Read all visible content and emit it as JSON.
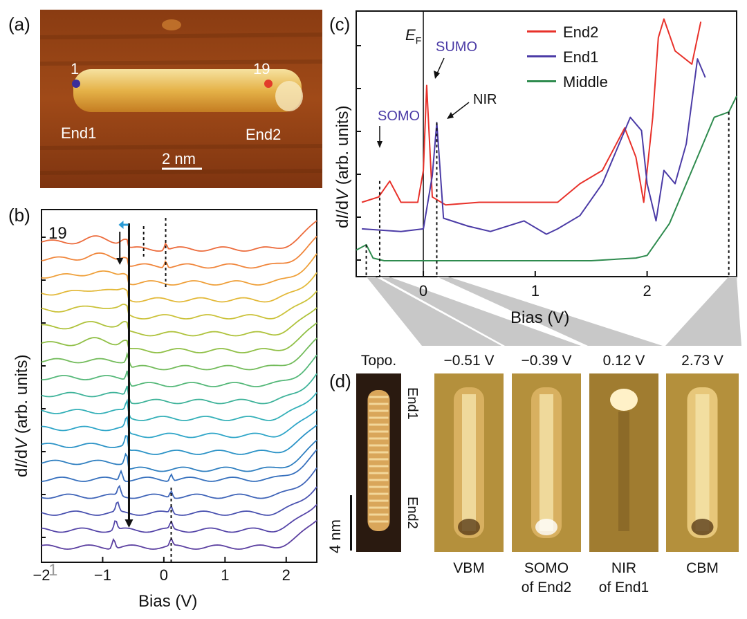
{
  "panels": {
    "a": {
      "label": "(a)",
      "point_start": "1",
      "point_end": "19",
      "end_left": "End1",
      "end_right": "End2",
      "scale_bar": "2 nm"
    },
    "b": {
      "label": "(b)",
      "xlabel": "Bias (V)",
      "ylabel_pre": "d",
      "ylabel_i": "I",
      "ylabel_mid": "/d",
      "ylabel_v": "V",
      "ylabel_post": " (arb. units)",
      "trace_top_label": "19",
      "trace_bottom_label": "1",
      "xticks": [
        "−2",
        "−1",
        "0",
        "1",
        "2"
      ]
    },
    "c": {
      "label": "(c)",
      "xlabel": "Bias (V)",
      "ylabel_pre": "d",
      "ylabel_i": "I",
      "ylabel_mid": "/d",
      "ylabel_v": "V",
      "ylabel_post": " (arb. units)",
      "ef_main": "E",
      "ef_sub": "F",
      "annot_somo": "SOMO",
      "annot_sumo": "SUMO",
      "annot_nir": "NIR",
      "xticks": [
        "0",
        "1",
        "2"
      ],
      "legend": [
        {
          "name": "End2",
          "color": "#e8312a"
        },
        {
          "name": "End1",
          "color": "#4b3ba6"
        },
        {
          "name": "Middle",
          "color": "#2e8b4e"
        }
      ]
    },
    "d": {
      "label": "(d)",
      "images": [
        {
          "top": "Topo.",
          "bottom1": "",
          "bottom2": ""
        },
        {
          "top": "−0.51 V",
          "bottom1": "VBM",
          "bottom2": ""
        },
        {
          "top": "−0.39 V",
          "bottom1": "SOMO",
          "bottom2": "of End2"
        },
        {
          "top": "0.12 V",
          "bottom1": "NIR",
          "bottom2": "of End1"
        },
        {
          "top": "2.73 V",
          "bottom1": "CBM",
          "bottom2": ""
        }
      ],
      "end1": "End1",
      "end2": "End2",
      "scale_bar": "4 nm"
    }
  },
  "chart_data": [
    {
      "type": "line",
      "title": "(c)",
      "xlabel": "Bias (V)",
      "ylabel": "dI/dV (arb. units)",
      "xlim": [
        -0.6,
        2.8
      ],
      "series": [
        {
          "name": "End2",
          "x": [
            -0.55,
            -0.4,
            -0.3,
            -0.2,
            -0.05,
            0.0,
            0.03,
            0.08,
            0.2,
            0.5,
            0.9,
            1.2,
            1.4,
            1.6,
            1.8,
            1.9,
            1.97,
            2.05,
            2.1,
            2.15,
            2.25,
            2.4,
            2.48
          ],
          "y": [
            0.28,
            0.3,
            0.36,
            0.28,
            0.28,
            0.4,
            0.72,
            0.3,
            0.27,
            0.28,
            0.28,
            0.28,
            0.35,
            0.4,
            0.56,
            0.45,
            0.28,
            0.6,
            0.9,
            0.97,
            0.85,
            0.8,
            0.96
          ]
        },
        {
          "name": "End1",
          "x": [
            -0.55,
            -0.2,
            0.0,
            0.08,
            0.12,
            0.18,
            0.4,
            0.6,
            0.9,
            1.1,
            1.2,
            1.4,
            1.6,
            1.7,
            1.85,
            1.95,
            2.0,
            2.08,
            2.15,
            2.25,
            2.35,
            2.45,
            2.52
          ],
          "y": [
            0.18,
            0.17,
            0.18,
            0.38,
            0.58,
            0.22,
            0.19,
            0.17,
            0.21,
            0.16,
            0.18,
            0.23,
            0.35,
            0.45,
            0.6,
            0.55,
            0.35,
            0.21,
            0.4,
            0.35,
            0.5,
            0.82,
            0.75
          ]
        },
        {
          "name": "Middle",
          "x": [
            -0.6,
            -0.51,
            -0.45,
            -0.35,
            0,
            0.5,
            1.0,
            1.5,
            1.9,
            2.0,
            2.2,
            2.4,
            2.6,
            2.73,
            2.8
          ],
          "y": [
            0.1,
            0.12,
            0.07,
            0.06,
            0.06,
            0.06,
            0.06,
            0.06,
            0.07,
            0.08,
            0.2,
            0.4,
            0.6,
            0.62,
            0.68
          ]
        }
      ]
    }
  ]
}
